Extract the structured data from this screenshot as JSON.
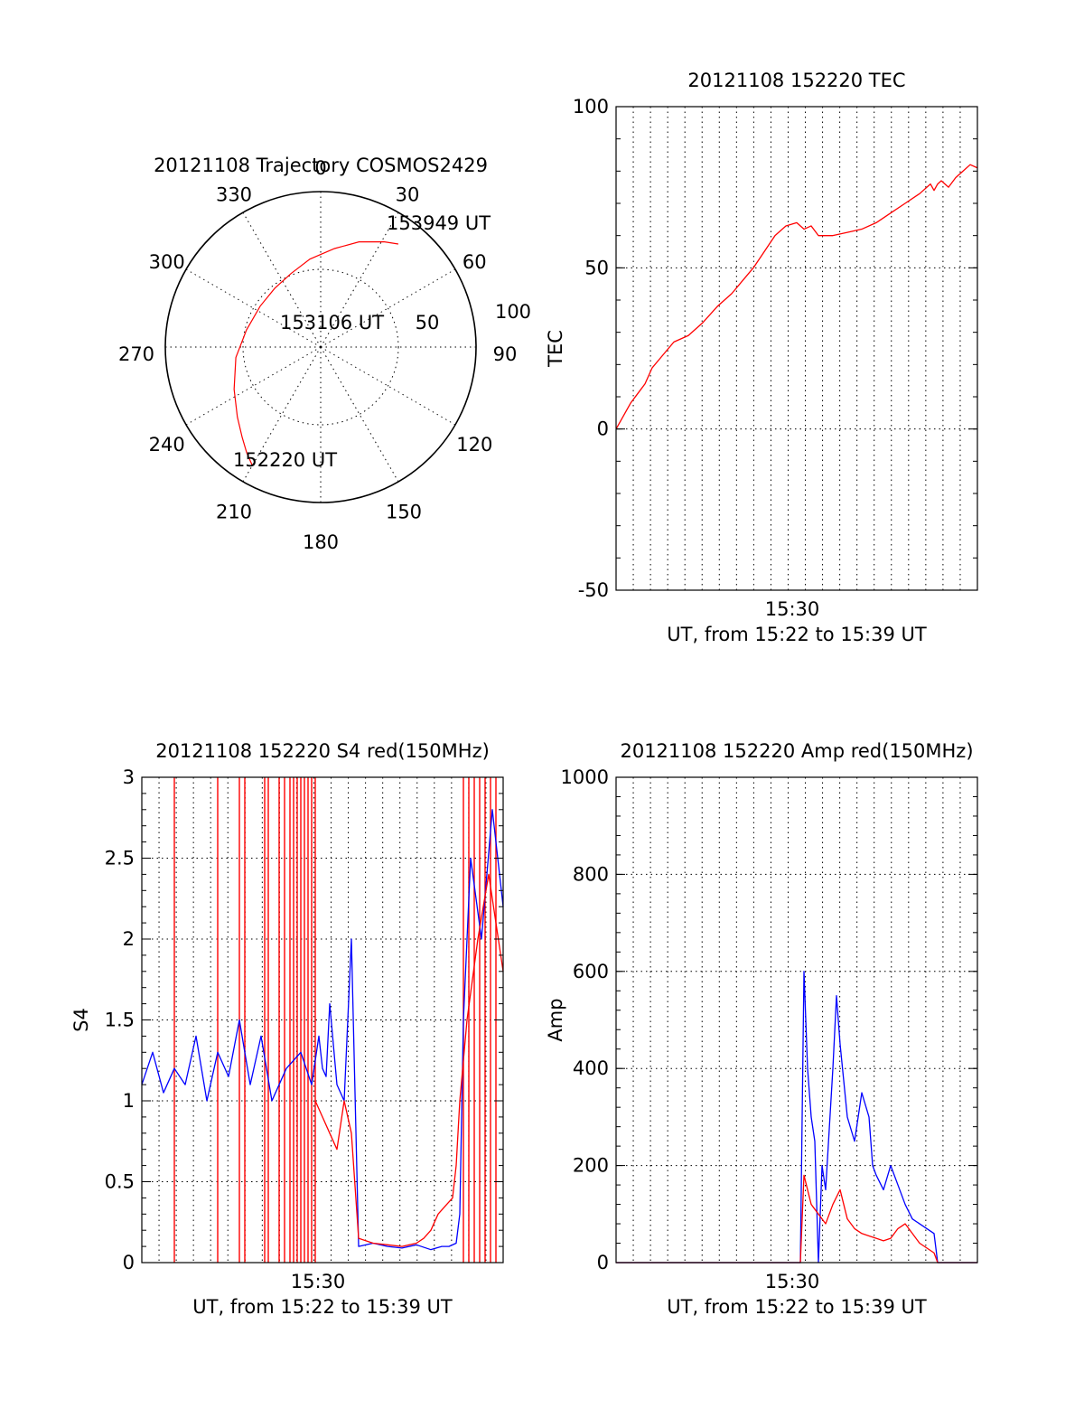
{
  "colors": {
    "red": "#ff0000",
    "blue": "#0000ff",
    "axis": "#000000"
  },
  "chart_data": [
    {
      "type": "polar",
      "title": "20121108 Trajectory COSMOS2429",
      "angle_labels": [
        "0",
        "30",
        "60",
        "90",
        "120",
        "150",
        "180",
        "210",
        "240",
        "270",
        "300",
        "330"
      ],
      "radial_labels": [
        "50",
        "100"
      ],
      "rlim": [
        0,
        100
      ],
      "series": [
        {
          "color": "red",
          "points": [
            [
              210,
              88
            ],
            [
              215,
              83
            ],
            [
              221,
              77
            ],
            [
              230,
              70
            ],
            [
              244,
              62
            ],
            [
              263,
              55
            ],
            [
              283,
              49
            ],
            [
              304,
              47
            ],
            [
              322,
              48
            ],
            [
              338,
              51
            ],
            [
              353,
              57
            ],
            [
              8,
              64
            ],
            [
              20,
              72
            ],
            [
              31,
              79
            ],
            [
              37,
              83
            ]
          ]
        }
      ],
      "annotations": [
        "152220 UT",
        "153106 UT",
        "153949 UT"
      ]
    },
    {
      "type": "line",
      "title": "20121108 152220 TEC",
      "ylabel": "TEC",
      "xlabel": "UT, from 15:22 to 15:39 UT",
      "xtick_labels": [
        "15:30"
      ],
      "ytick_labels": [
        "-50",
        "0",
        "50",
        "100"
      ],
      "xlim": [
        0,
        1000
      ],
      "ylim": [
        -50,
        100
      ],
      "series": [
        {
          "color": "red",
          "x": [
            0,
            20,
            40,
            60,
            80,
            100,
            130,
            160,
            200,
            240,
            280,
            320,
            350,
            380,
            410,
            440,
            470,
            500,
            520,
            540,
            560,
            580,
            600,
            640,
            680,
            720,
            760,
            800,
            840,
            870,
            880,
            890,
            900,
            920,
            940,
            960,
            980,
            1000
          ],
          "y": [
            0,
            4,
            8,
            11,
            14,
            19,
            23,
            27,
            29,
            33,
            38,
            42,
            46,
            50,
            55,
            60,
            63,
            64,
            62,
            63,
            60,
            60,
            60,
            61,
            62,
            64,
            67,
            70,
            73,
            76,
            74,
            76,
            77,
            75,
            78,
            80,
            82,
            81
          ]
        }
      ]
    },
    {
      "type": "line",
      "title": "20121108 152220 S4 red(150MHz)",
      "ylabel": "S4",
      "xlabel": "UT, from 15:22 to 15:39 UT",
      "xtick_labels": [
        "15:30"
      ],
      "ytick_labels": [
        "0",
        "0.5",
        "1",
        "1.5",
        "2",
        "2.5",
        "3"
      ],
      "xlim": [
        0,
        1000
      ],
      "ylim": [
        0,
        3
      ],
      "series": [
        {
          "name": "",
          "color": "blue",
          "x": [
            0,
            30,
            60,
            90,
            120,
            150,
            180,
            210,
            240,
            270,
            300,
            330,
            360,
            400,
            440,
            470,
            490,
            500,
            510,
            520,
            540,
            560,
            580,
            600,
            640,
            680,
            720,
            760,
            800,
            830,
            850,
            870,
            880,
            890,
            910,
            940,
            970,
            1000
          ],
          "y": [
            1.1,
            1.3,
            1.05,
            1.2,
            1.1,
            1.4,
            1.0,
            1.3,
            1.15,
            1.5,
            1.1,
            1.4,
            1.0,
            1.2,
            1.3,
            1.1,
            1.4,
            1.2,
            1.15,
            1.6,
            1.1,
            1.0,
            2.0,
            0.1,
            0.12,
            0.1,
            0.09,
            0.11,
            0.08,
            0.1,
            0.1,
            0.12,
            0.3,
            1.5,
            2.5,
            2.0,
            2.8,
            2.2
          ]
        },
        {
          "name": "",
          "color": "red",
          "x": [
            480,
            500,
            520,
            540,
            560,
            580,
            600,
            640,
            680,
            720,
            760,
            780,
            800,
            820,
            840,
            860,
            870,
            880,
            900,
            930,
            960,
            1000
          ],
          "y": [
            1.0,
            0.9,
            0.8,
            0.7,
            1.0,
            0.8,
            0.15,
            0.12,
            0.11,
            0.1,
            0.12,
            0.15,
            0.2,
            0.3,
            0.35,
            0.4,
            0.6,
            1.0,
            1.5,
            2.0,
            2.4,
            1.8
          ]
        }
      ],
      "red_spikes_x": [
        90,
        210,
        270,
        285,
        340,
        350,
        380,
        395,
        410,
        420,
        430,
        440,
        450,
        460,
        470,
        480,
        890,
        905,
        920,
        935,
        950,
        965,
        980
      ]
    },
    {
      "type": "line",
      "title": "20121108 152220 Amp red(150MHz)",
      "ylabel": "Amp",
      "xlabel": "UT, from 15:22 to 15:39 UT",
      "xtick_labels": [
        "15:30"
      ],
      "ytick_labels": [
        "0",
        "200",
        "400",
        "600",
        "800",
        "1000"
      ],
      "xlim": [
        0,
        1000
      ],
      "ylim": [
        0,
        1000
      ],
      "series": [
        {
          "name": "",
          "color": "blue",
          "x": [
            0,
            200,
            400,
            500,
            510,
            520,
            530,
            540,
            550,
            560,
            570,
            580,
            600,
            610,
            620,
            640,
            660,
            680,
            700,
            710,
            720,
            740,
            760,
            780,
            800,
            820,
            840,
            860,
            880,
            890,
            900,
            1000
          ],
          "y": [
            0,
            0,
            0,
            0,
            0,
            600,
            400,
            300,
            250,
            0,
            200,
            150,
            400,
            550,
            450,
            300,
            250,
            350,
            300,
            200,
            180,
            150,
            200,
            160,
            120,
            90,
            80,
            70,
            60,
            0,
            0,
            0
          ]
        },
        {
          "name": "",
          "color": "red",
          "x": [
            0,
            200,
            400,
            500,
            510,
            520,
            530,
            540,
            560,
            580,
            600,
            620,
            640,
            660,
            680,
            700,
            720,
            740,
            760,
            780,
            800,
            820,
            840,
            860,
            880,
            890,
            1000
          ],
          "y": [
            0,
            0,
            0,
            0,
            0,
            180,
            150,
            120,
            100,
            80,
            120,
            150,
            90,
            70,
            60,
            55,
            50,
            45,
            50,
            70,
            80,
            60,
            40,
            30,
            20,
            0,
            0
          ]
        }
      ]
    }
  ]
}
